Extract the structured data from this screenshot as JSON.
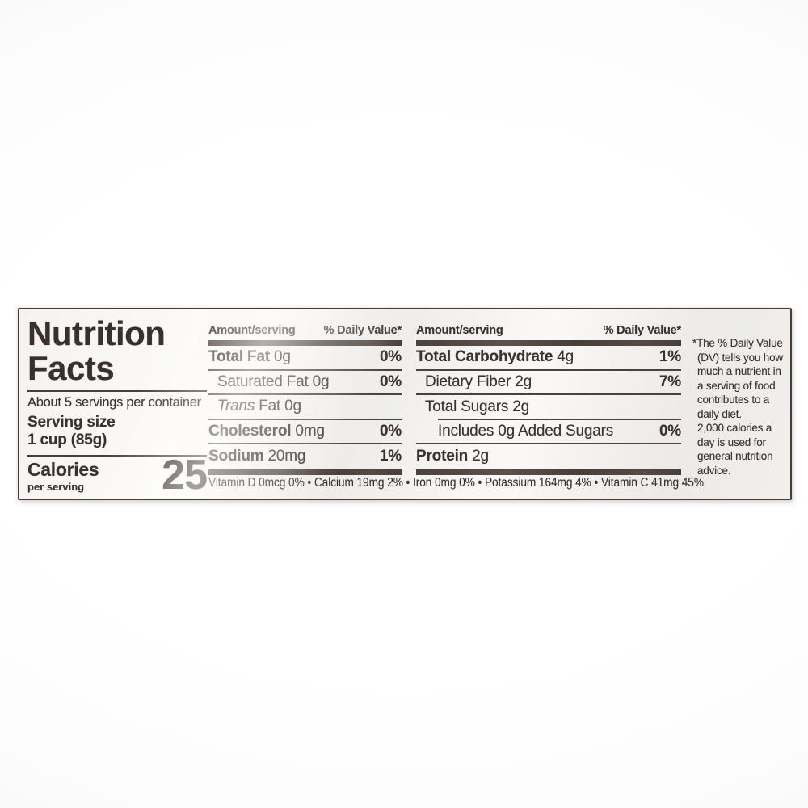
{
  "label": {
    "title_line1": "Nutrition",
    "title_line2": "Facts",
    "servings_line": "About 5 servings per container",
    "serving_size_label": "Serving size",
    "serving_size_value": "1 cup (85g)",
    "calories_label": "Calories",
    "calories_sublabel": "per serving",
    "calories_value": "25",
    "mid_header": {
      "amount": "Amount/serving",
      "dv": "% Daily Value*"
    },
    "right_header": {
      "amount": "Amount/serving",
      "dv": "% Daily Value*"
    },
    "mid_rows": [
      {
        "bold": "Total Fat",
        "plain": " 0g",
        "dv": "0%"
      },
      {
        "plain": "Saturated Fat 0g",
        "dv": "0%"
      },
      {
        "italic": "Trans",
        "plain": " Fat 0g"
      },
      {
        "bold": "Cholesterol",
        "plain": " 0mg",
        "dv": "0%"
      },
      {
        "bold": "Sodium",
        "plain": " 20mg",
        "dv": "1%"
      }
    ],
    "right_rows": [
      {
        "bold": "Total Carbohydrate",
        "plain": " 4g",
        "dv": "1%"
      },
      {
        "plain": "Dietary Fiber 2g",
        "dv": "7%"
      },
      {
        "plain": "Total Sugars 2g"
      },
      {
        "plain": "Includes 0g Added Sugars",
        "dv": "0%"
      },
      {
        "bold": "Protein",
        "plain": " 2g"
      }
    ],
    "micronutrients": "Vitamin D 0mcg 0% • Calcium 19mg 2% • Iron 0mg 0% • Potassium 164mg 4% • Vitamin C 41mg 45%",
    "footnote_p1": "*The % Daily Value (DV) tells you how much a nutrient in a serving of food contributes to a daily diet.",
    "footnote_p2": "2,000 calories a day is used for general nutrition advice.",
    "colors": {
      "ink": "#3a322e",
      "rule": "#4a423c",
      "paper": "#f5f3f1"
    }
  }
}
